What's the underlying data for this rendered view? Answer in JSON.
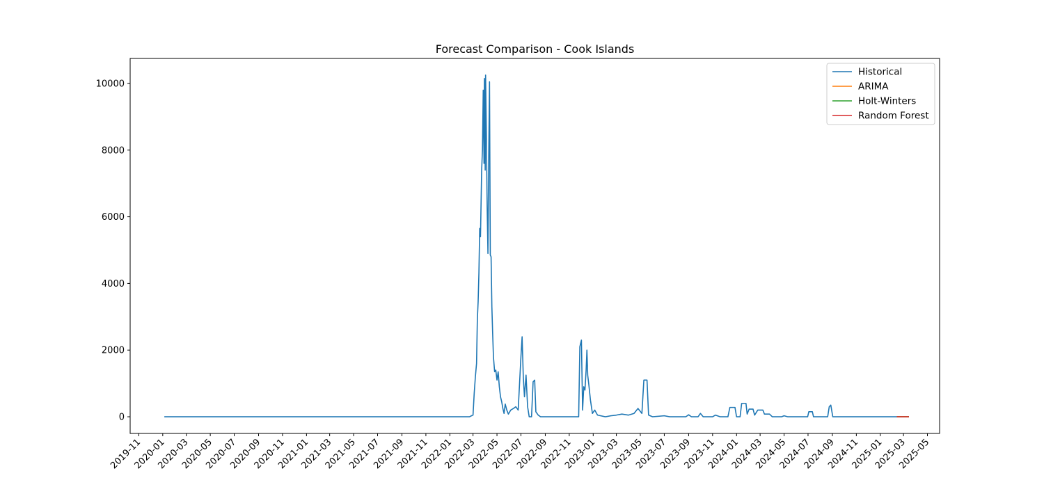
{
  "chart_data": {
    "type": "line",
    "title": "Forecast Comparison - Cook Islands",
    "xlabel": "",
    "ylabel": "",
    "x_axis": {
      "type": "date",
      "range": [
        "2019-10-10",
        "2025-06-01"
      ],
      "ticks": [
        "2019-11",
        "2020-01",
        "2020-03",
        "2020-05",
        "2020-07",
        "2020-09",
        "2020-11",
        "2021-01",
        "2021-03",
        "2021-05",
        "2021-07",
        "2021-09",
        "2021-11",
        "2022-01",
        "2022-03",
        "2022-05",
        "2022-07",
        "2022-09",
        "2022-11",
        "2023-01",
        "2023-03",
        "2023-05",
        "2023-07",
        "2023-09",
        "2023-11",
        "2024-01",
        "2024-03",
        "2024-05",
        "2024-07",
        "2024-09",
        "2024-11",
        "2025-01",
        "2025-03",
        "2025-05"
      ]
    },
    "y_axis": {
      "range": [
        -500,
        10750
      ],
      "ticks": [
        0,
        2000,
        4000,
        6000,
        8000,
        10000
      ]
    },
    "grid": false,
    "legend": {
      "position": "top-right",
      "entries": [
        "Historical",
        "ARIMA",
        "Holt-Winters",
        "Random Forest"
      ]
    },
    "series": [
      {
        "name": "Historical",
        "color": "#1f77b4",
        "points": [
          [
            "2020-01-05",
            0
          ],
          [
            "2022-02-20",
            0
          ],
          [
            "2022-02-25",
            30
          ],
          [
            "2022-03-01",
            50
          ],
          [
            "2022-03-04",
            700
          ],
          [
            "2022-03-07",
            1200
          ],
          [
            "2022-03-10",
            1600
          ],
          [
            "2022-03-12",
            2900
          ],
          [
            "2022-03-14",
            3450
          ],
          [
            "2022-03-16",
            4300
          ],
          [
            "2022-03-18",
            5650
          ],
          [
            "2022-03-20",
            5400
          ],
          [
            "2022-03-23",
            7400
          ],
          [
            "2022-03-25",
            8000
          ],
          [
            "2022-03-27",
            9800
          ],
          [
            "2022-03-29",
            7600
          ],
          [
            "2022-03-30",
            10150
          ],
          [
            "2022-04-01",
            7400
          ],
          [
            "2022-04-02",
            10250
          ],
          [
            "2022-04-04",
            8500
          ],
          [
            "2022-04-06",
            6300
          ],
          [
            "2022-04-08",
            4900
          ],
          [
            "2022-04-10",
            7800
          ],
          [
            "2022-04-12",
            10050
          ],
          [
            "2022-04-14",
            4850
          ],
          [
            "2022-04-16",
            4800
          ],
          [
            "2022-04-18",
            3300
          ],
          [
            "2022-04-20",
            2500
          ],
          [
            "2022-04-22",
            1800
          ],
          [
            "2022-04-25",
            1350
          ],
          [
            "2022-04-28",
            1400
          ],
          [
            "2022-05-01",
            1100
          ],
          [
            "2022-05-04",
            1350
          ],
          [
            "2022-05-07",
            900
          ],
          [
            "2022-05-10",
            600
          ],
          [
            "2022-05-13",
            450
          ],
          [
            "2022-05-16",
            250
          ],
          [
            "2022-05-19",
            100
          ],
          [
            "2022-05-22",
            380
          ],
          [
            "2022-05-26",
            200
          ],
          [
            "2022-05-30",
            80
          ],
          [
            "2022-06-05",
            200
          ],
          [
            "2022-06-12",
            250
          ],
          [
            "2022-06-18",
            300
          ],
          [
            "2022-06-24",
            200
          ],
          [
            "2022-07-01",
            1800
          ],
          [
            "2022-07-04",
            2400
          ],
          [
            "2022-07-07",
            1200
          ],
          [
            "2022-07-10",
            600
          ],
          [
            "2022-07-14",
            1250
          ],
          [
            "2022-07-18",
            300
          ],
          [
            "2022-07-22",
            0
          ],
          [
            "2022-07-28",
            0
          ],
          [
            "2022-08-01",
            1050
          ],
          [
            "2022-08-05",
            1100
          ],
          [
            "2022-08-08",
            150
          ],
          [
            "2022-08-14",
            50
          ],
          [
            "2022-08-20",
            0
          ],
          [
            "2022-11-25",
            0
          ],
          [
            "2022-11-28",
            2100
          ],
          [
            "2022-12-02",
            2300
          ],
          [
            "2022-12-05",
            200
          ],
          [
            "2022-12-08",
            900
          ],
          [
            "2022-12-11",
            800
          ],
          [
            "2022-12-14",
            1400
          ],
          [
            "2022-12-16",
            2000
          ],
          [
            "2022-12-18",
            1250
          ],
          [
            "2022-12-21",
            950
          ],
          [
            "2022-12-25",
            500
          ],
          [
            "2022-12-30",
            100
          ],
          [
            "2023-01-05",
            200
          ],
          [
            "2023-01-12",
            50
          ],
          [
            "2023-01-20",
            30
          ],
          [
            "2023-02-01",
            0
          ],
          [
            "2023-02-15",
            30
          ],
          [
            "2023-03-01",
            50
          ],
          [
            "2023-03-15",
            80
          ],
          [
            "2023-04-01",
            50
          ],
          [
            "2023-04-15",
            100
          ],
          [
            "2023-04-25",
            250
          ],
          [
            "2023-05-05",
            100
          ],
          [
            "2023-05-10",
            1100
          ],
          [
            "2023-05-18",
            1100
          ],
          [
            "2023-05-22",
            50
          ],
          [
            "2023-06-01",
            0
          ],
          [
            "2023-07-01",
            30
          ],
          [
            "2023-07-15",
            0
          ],
          [
            "2023-08-25",
            0
          ],
          [
            "2023-09-01",
            60
          ],
          [
            "2023-09-08",
            0
          ],
          [
            "2023-09-25",
            0
          ],
          [
            "2023-10-01",
            100
          ],
          [
            "2023-10-08",
            0
          ],
          [
            "2023-11-01",
            0
          ],
          [
            "2023-11-08",
            50
          ],
          [
            "2023-11-20",
            0
          ],
          [
            "2023-12-10",
            0
          ],
          [
            "2023-12-15",
            280
          ],
          [
            "2023-12-28",
            280
          ],
          [
            "2024-01-01",
            0
          ],
          [
            "2024-01-10",
            0
          ],
          [
            "2024-01-14",
            400
          ],
          [
            "2024-01-25",
            400
          ],
          [
            "2024-01-28",
            80
          ],
          [
            "2024-02-02",
            230
          ],
          [
            "2024-02-12",
            230
          ],
          [
            "2024-02-16",
            50
          ],
          [
            "2024-02-24",
            200
          ],
          [
            "2024-03-08",
            200
          ],
          [
            "2024-03-12",
            80
          ],
          [
            "2024-03-25",
            80
          ],
          [
            "2024-04-01",
            0
          ],
          [
            "2024-04-25",
            0
          ],
          [
            "2024-05-01",
            30
          ],
          [
            "2024-05-10",
            0
          ],
          [
            "2024-06-30",
            0
          ],
          [
            "2024-07-03",
            150
          ],
          [
            "2024-07-12",
            150
          ],
          [
            "2024-07-15",
            0
          ],
          [
            "2024-08-20",
            0
          ],
          [
            "2024-08-24",
            300
          ],
          [
            "2024-08-28",
            350
          ],
          [
            "2024-09-02",
            0
          ],
          [
            "2025-02-12",
            0
          ]
        ]
      },
      {
        "name": "ARIMA",
        "color": "#ff7f0e",
        "points": [
          [
            "2025-02-12",
            0
          ],
          [
            "2025-03-15",
            0
          ]
        ]
      },
      {
        "name": "Holt-Winters",
        "color": "#2ca02c",
        "points": [
          [
            "2025-02-12",
            0
          ],
          [
            "2025-03-15",
            0
          ]
        ]
      },
      {
        "name": "Random Forest",
        "color": "#d62728",
        "points": [
          [
            "2025-02-12",
            0
          ],
          [
            "2025-03-15",
            0
          ]
        ]
      }
    ]
  }
}
